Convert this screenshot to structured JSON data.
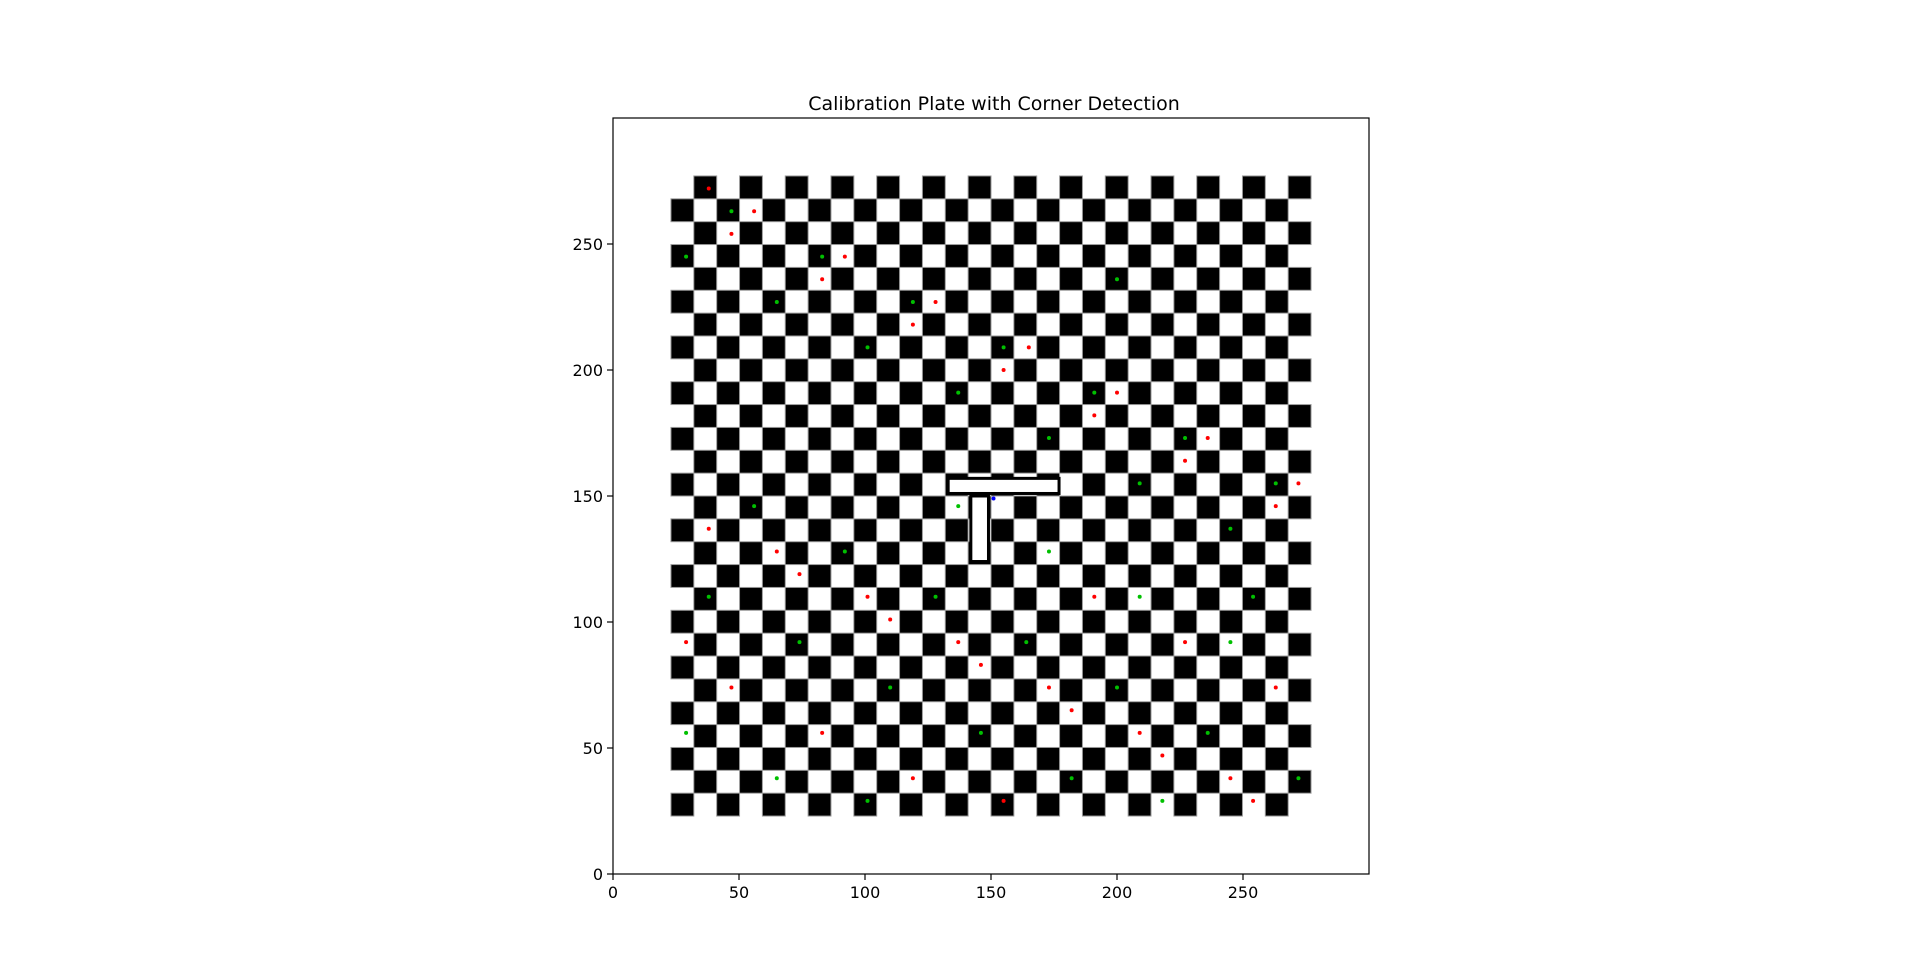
{
  "chart_data": {
    "type": "heatmap",
    "title": "Calibration Plate with Corner Detection",
    "xlabel": "",
    "ylabel": "",
    "xlim": [
      0,
      300
    ],
    "ylim": [
      0,
      300
    ],
    "xticks": [
      0,
      50,
      100,
      150,
      200,
      250
    ],
    "yticks": [
      0,
      50,
      100,
      150,
      200,
      250
    ],
    "grid": false,
    "board": {
      "extent_x": [
        23,
        277
      ],
      "extent_y": [
        23,
        277
      ],
      "cells_x": 28,
      "cells_y": 28,
      "cell_fill": "#000000",
      "background": "#ffffff"
    },
    "marker": {
      "shape": "T",
      "fill": "#ffffff",
      "outline": "#000000",
      "bar": {
        "x": [
          133,
          177
        ],
        "y": [
          151,
          157
        ]
      },
      "stem": {
        "x": [
          142,
          149
        ],
        "y": [
          124,
          150
        ]
      }
    },
    "corner_colors": {
      "red": "#ff0000",
      "green": "#00c000",
      "blue": "#0000ff"
    },
    "corner_points": {
      "red": [
        [
          38,
          272
        ],
        [
          56,
          263
        ],
        [
          92,
          245
        ],
        [
          128,
          227
        ],
        [
          165,
          209
        ],
        [
          200,
          191
        ],
        [
          236,
          173
        ],
        [
          272,
          155
        ],
        [
          47,
          254
        ],
        [
          83,
          236
        ],
        [
          119,
          218
        ],
        [
          155,
          200
        ],
        [
          191,
          182
        ],
        [
          227,
          164
        ],
        [
          263,
          146
        ],
        [
          38,
          137
        ],
        [
          74,
          119
        ],
        [
          110,
          101
        ],
        [
          146,
          83
        ],
        [
          182,
          65
        ],
        [
          218,
          47
        ],
        [
          254,
          29
        ],
        [
          65,
          128
        ],
        [
          101,
          110
        ],
        [
          137,
          92
        ],
        [
          173,
          74
        ],
        [
          209,
          56
        ],
        [
          245,
          38
        ],
        [
          29,
          92
        ],
        [
          47,
          74
        ],
        [
          83,
          56
        ],
        [
          119,
          38
        ],
        [
          155,
          29
        ],
        [
          191,
          110
        ],
        [
          227,
          92
        ],
        [
          263,
          74
        ]
      ],
      "green": [
        [
          47,
          263
        ],
        [
          83,
          245
        ],
        [
          119,
          227
        ],
        [
          155,
          209
        ],
        [
          191,
          191
        ],
        [
          227,
          173
        ],
        [
          263,
          155
        ],
        [
          29,
          245
        ],
        [
          65,
          227
        ],
        [
          101,
          209
        ],
        [
          137,
          191
        ],
        [
          173,
          173
        ],
        [
          209,
          155
        ],
        [
          245,
          137
        ],
        [
          56,
          146
        ],
        [
          92,
          128
        ],
        [
          128,
          110
        ],
        [
          164,
          92
        ],
        [
          200,
          74
        ],
        [
          236,
          56
        ],
        [
          272,
          38
        ],
        [
          38,
          110
        ],
        [
          74,
          92
        ],
        [
          110,
          74
        ],
        [
          146,
          56
        ],
        [
          182,
          38
        ],
        [
          218,
          29
        ],
        [
          254,
          110
        ],
        [
          29,
          56
        ],
        [
          65,
          38
        ],
        [
          101,
          29
        ],
        [
          137,
          146
        ],
        [
          173,
          128
        ],
        [
          209,
          110
        ],
        [
          245,
          92
        ],
        [
          200,
          236
        ]
      ],
      "blue": [
        [
          151,
          149
        ]
      ]
    }
  }
}
